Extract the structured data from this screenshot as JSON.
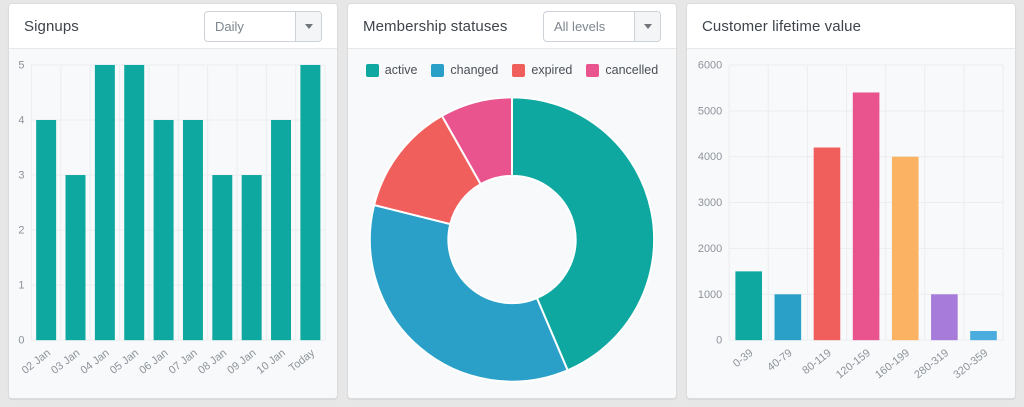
{
  "panels": [
    {
      "title": "Signups",
      "dropdown": {
        "value": "Daily"
      }
    },
    {
      "title": "Membership statuses",
      "dropdown": {
        "value": "All levels"
      }
    },
    {
      "title": "Customer lifetime value"
    }
  ],
  "chart_data": [
    {
      "type": "bar",
      "title": "Signups",
      "categories": [
        "02 Jan",
        "03 Jan",
        "04 Jan",
        "05 Jan",
        "06 Jan",
        "07 Jan",
        "08 Jan",
        "09 Jan",
        "10 Jan",
        "Today"
      ],
      "values": [
        4,
        3,
        5,
        5,
        4,
        4,
        3,
        3,
        4,
        5
      ],
      "bar_color": "#0EA8A0",
      "xlabel": "",
      "ylabel": "",
      "ylim": [
        0,
        5
      ],
      "ytick_step": 1,
      "grid": true,
      "legend_position": "none"
    },
    {
      "type": "pie",
      "subtype": "donut",
      "title": "Membership statuses",
      "values_are_percent_estimates": true,
      "segments": [
        {
          "label": "active",
          "value": 43.6,
          "color": "#0EA8A0"
        },
        {
          "label": "changed",
          "value": 35.3,
          "color": "#2AA0C8"
        },
        {
          "label": "expired",
          "value": 12.9,
          "color": "#F15F5C"
        },
        {
          "label": "cancelled",
          "value": 8.2,
          "color": "#E9548F"
        }
      ],
      "legend_position": "top"
    },
    {
      "type": "bar",
      "title": "Customer lifetime value",
      "categories": [
        "0-39",
        "40-79",
        "80-119",
        "120-159",
        "160-199",
        "280-319",
        "320-359"
      ],
      "values": [
        1500,
        1000,
        4200,
        5400,
        4000,
        1000,
        200
      ],
      "bar_colors": [
        "#0EA8A0",
        "#2AA0C8",
        "#F15F5C",
        "#E9548F",
        "#FBB263",
        "#A67BD9",
        "#4BADDD"
      ],
      "xlabel": "",
      "ylabel": "",
      "ylim": [
        0,
        6000
      ],
      "ytick_step": 1000,
      "grid": true,
      "legend_position": "none"
    }
  ],
  "theme": {
    "accent_teal": "#0EA8A0",
    "accent_blue": "#2AA0C8",
    "accent_red": "#F15F5C",
    "accent_pink": "#E9548F",
    "accent_orange": "#FBB263",
    "accent_purple": "#A67BD9",
    "accent_lightblue": "#4BADDD"
  }
}
